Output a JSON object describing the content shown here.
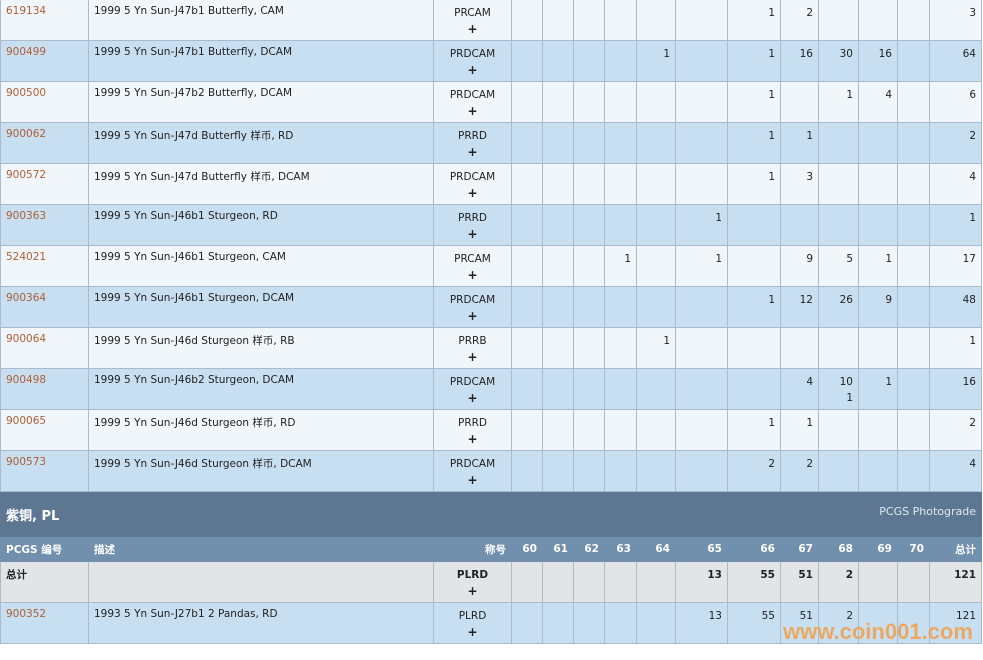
{
  "grades": [
    "60",
    "61",
    "62",
    "63",
    "64",
    "65",
    "66",
    "67",
    "68",
    "69",
    "70"
  ],
  "rows_top": [
    {
      "code": "619134",
      "desc": "1999 5 Yn Sun-J47b1 Butterfly, CAM",
      "designation": "PRCAM",
      "plus": "+",
      "counts": {
        "66": "1",
        "67": "2"
      },
      "total": "3"
    },
    {
      "code": "900499",
      "desc": "1999 5 Yn Sun-J47b1 Butterfly, DCAM",
      "designation": "PRDCAM",
      "plus": "+",
      "counts": {
        "64": "1",
        "66": "1",
        "67": "16",
        "68": "30",
        "69": "16"
      },
      "total": "64"
    },
    {
      "code": "900500",
      "desc": "1999 5 Yn Sun-J47b2 Butterfly, DCAM",
      "designation": "PRDCAM",
      "plus": "+",
      "counts": {
        "66": "1",
        "68": "1",
        "69": "4"
      },
      "total": "6"
    },
    {
      "code": "900062",
      "desc": "1999 5 Yn Sun-J47d Butterfly 样币, RD",
      "designation": "PRRD",
      "plus": "+",
      "counts": {
        "66": "1",
        "67": "1"
      },
      "total": "2"
    },
    {
      "code": "900572",
      "desc": "1999 5 Yn Sun-J47d Butterfly 样币, DCAM",
      "designation": "PRDCAM",
      "plus": "+",
      "counts": {
        "66": "1",
        "67": "3"
      },
      "total": "4"
    },
    {
      "code": "900363",
      "desc": "1999 5 Yn Sun-J46b1 Sturgeon, RD",
      "designation": "PRRD",
      "plus": "+",
      "counts": {
        "65": "1"
      },
      "total": "1"
    },
    {
      "code": "524021",
      "desc": "1999 5 Yn Sun-J46b1 Sturgeon, CAM",
      "designation": "PRCAM",
      "plus": "+",
      "counts": {
        "63": "1",
        "65": "1",
        "67": "9",
        "68": "5",
        "69": "1"
      },
      "total": "17"
    },
    {
      "code": "900364",
      "desc": "1999 5 Yn Sun-J46b1 Sturgeon, DCAM",
      "designation": "PRDCAM",
      "plus": "+",
      "counts": {
        "66": "1",
        "67": "12",
        "68": "26",
        "69": "9"
      },
      "total": "48"
    },
    {
      "code": "900064",
      "desc": "1999 5 Yn Sun-J46d Sturgeon 样币, RB",
      "designation": "PRRB",
      "plus": "+",
      "counts": {
        "64": "1"
      },
      "total": "1"
    },
    {
      "code": "900498",
      "desc": "1999 5 Yn Sun-J46b2 Sturgeon, DCAM",
      "designation": "PRDCAM",
      "plus": "+",
      "counts": {
        "67": "4",
        "68": "10\n1",
        "69": "1"
      },
      "total": "16"
    },
    {
      "code": "900065",
      "desc": "1999 5 Yn Sun-J46d Sturgeon 样币, RD",
      "designation": "PRRD",
      "plus": "+",
      "counts": {
        "66": "1",
        "67": "1"
      },
      "total": "2"
    },
    {
      "code": "900573",
      "desc": "1999 5 Yn Sun-J46d Sturgeon 样币, DCAM",
      "designation": "PRDCAM",
      "plus": "+",
      "counts": {
        "66": "2",
        "67": "2"
      },
      "total": "4"
    }
  ],
  "section": {
    "title": "紫铜, PL",
    "right_link": "PCGS Photograde"
  },
  "column_headers": {
    "code": "PCGS 编号",
    "desc": "描述",
    "designation": "称号",
    "total": "总计"
  },
  "total_row": {
    "label": "总计",
    "designation": "PLRD",
    "plus": "+",
    "counts": {
      "65": "13",
      "66": "55",
      "67": "51",
      "68": "2"
    },
    "total": "121"
  },
  "rows_bottom": [
    {
      "code": "900352",
      "desc": "1993 5 Yn Sun-J27b1 2 Pandas, RD",
      "designation": "PLRD",
      "plus": "+",
      "counts": {
        "65": "13",
        "66": "55",
        "67": "51",
        "68": "2"
      },
      "total": "121"
    }
  ],
  "watermark": "www.coin001.com",
  "colors": {
    "link": "#ad5f35",
    "section_bg": "#5d7792",
    "header_bg": "#7090ad",
    "row_alt": "#c8dff2",
    "row": "#f1f6fb",
    "total_bg": "#e2e4e5"
  }
}
